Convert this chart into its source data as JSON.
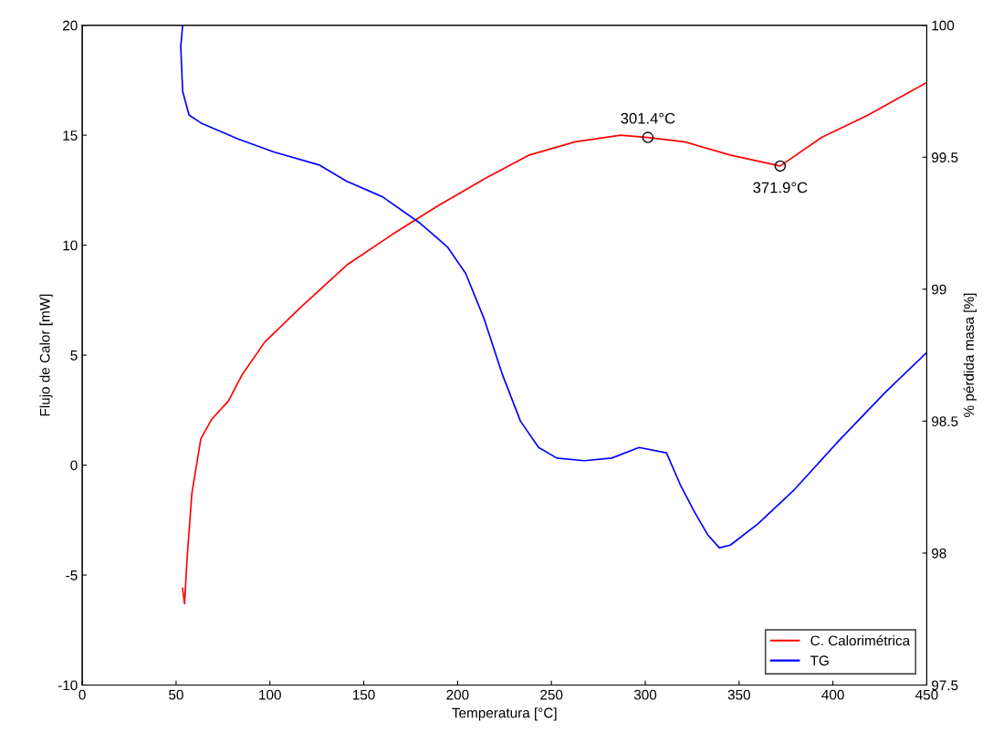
{
  "chart_data": {
    "type": "line",
    "xlabel": "Temperatura [°C]",
    "ylabel": "Flujo de Calor [mW]",
    "y2label": "% pérdida masa [%]",
    "xlim": [
      0,
      450
    ],
    "xticks": [
      0,
      50,
      100,
      150,
      200,
      250,
      300,
      350,
      400,
      450
    ],
    "ylim": [
      -10,
      20
    ],
    "yticks": [
      -10,
      -5,
      0,
      5,
      10,
      15,
      20
    ],
    "y2lim": [
      97.5,
      100
    ],
    "y2ticks": [
      97.5,
      98,
      98.5,
      99,
      99.5,
      100
    ],
    "grid": false,
    "legend": "bottom right",
    "marker": "none",
    "line_style": "solid",
    "series": [
      {
        "name": "C. Calorimétrica",
        "color": "#ff0000",
        "x": [
          53.5,
          54.5,
          55.9,
          58.4,
          63.2,
          69.1,
          77.8,
          85.1,
          97.3,
          116.7,
          141,
          165.4,
          189.7,
          214,
          238.2,
          262.6,
          286.9,
          301.4,
          320.9,
          345.3,
          371.9,
          394,
          418.3,
          450
        ],
        "values": [
          -5.6,
          -6.3,
          -4.2,
          -1.3,
          1.2,
          2.1,
          2.9,
          4.1,
          5.6,
          7.2,
          9.1,
          10.5,
          11.8,
          13.0,
          14.1,
          14.7,
          15.0,
          14.9,
          14.7,
          14.1,
          13.6,
          14.9,
          15.9,
          17.4
        ]
      },
      {
        "name": "TG",
        "color": "#0000ff",
        "axis": "y2",
        "x": [
          53.5,
          52.5,
          53.5,
          56.9,
          63.2,
          82.7,
          102.1,
          126.5,
          140.6,
          160,
          180,
          194.6,
          204.3,
          214,
          223.7,
          233.5,
          243.2,
          252.9,
          267.5,
          282.1,
          296.7,
          311.3,
          318.6,
          325.9,
          333.2,
          339.5,
          345.3,
          359.9,
          379.4,
          403.7,
          428,
          450
        ],
        "values": [
          100.0,
          99.92,
          99.75,
          99.66,
          99.63,
          99.57,
          99.52,
          99.47,
          99.41,
          99.35,
          99.25,
          99.16,
          99.06,
          98.89,
          98.68,
          98.5,
          98.4,
          98.36,
          98.35,
          98.36,
          98.4,
          98.38,
          98.26,
          98.16,
          98.07,
          98.02,
          98.03,
          98.11,
          98.24,
          98.43,
          98.61,
          98.76
        ]
      }
    ],
    "annotations": [
      {
        "text": "301.4°C",
        "x": 301.4,
        "y": 14.9
      },
      {
        "text": "371.9°C",
        "x": 371.9,
        "y": 13.6
      }
    ]
  }
}
